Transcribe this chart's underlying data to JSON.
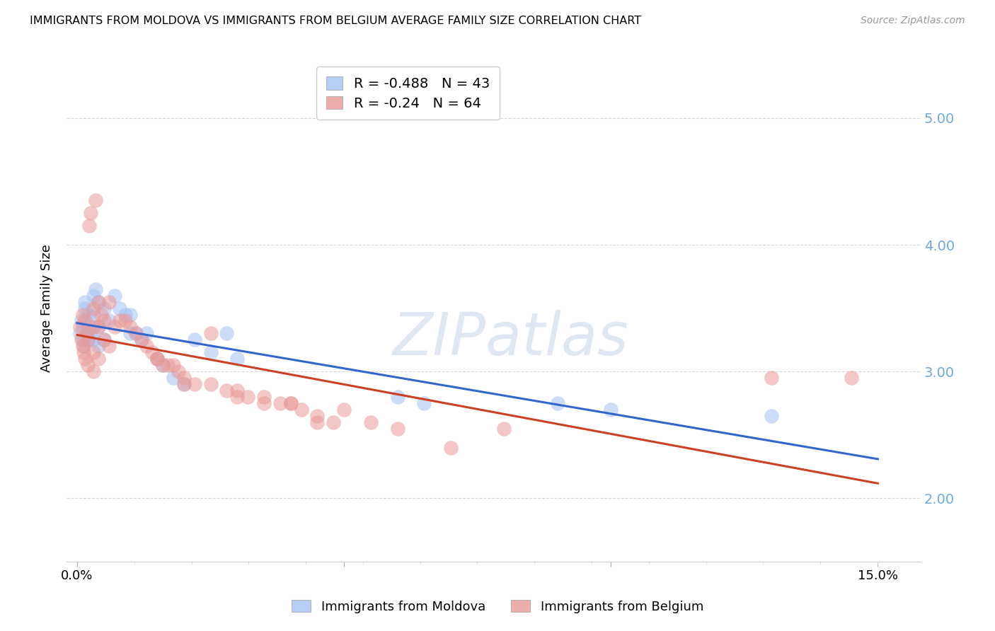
{
  "title": "IMMIGRANTS FROM MOLDOVA VS IMMIGRANTS FROM BELGIUM AVERAGE FAMILY SIZE CORRELATION CHART",
  "source": "Source: ZipAtlas.com",
  "ylabel": "Average Family Size",
  "xlabel_ticks": [
    "0.0%",
    "",
    "",
    "",
    "",
    "",
    "",
    "",
    "",
    "",
    "",
    "",
    "",
    "",
    "15.0%"
  ],
  "ylim": [
    1.5,
    5.5
  ],
  "xlim": [
    -0.002,
    0.158
  ],
  "yticks": [
    2.0,
    3.0,
    4.0,
    5.0
  ],
  "moldova_R": -0.488,
  "moldova_N": 43,
  "belgium_R": -0.24,
  "belgium_N": 64,
  "moldova_color": "#a4c2f4",
  "belgium_color": "#ea9999",
  "moldova_line_color": "#3366cc",
  "belgium_line_color": "#cc4125",
  "moldova_x": [
    0.0005,
    0.0008,
    0.001,
    0.001,
    0.0012,
    0.0015,
    0.0015,
    0.0018,
    0.002,
    0.002,
    0.0022,
    0.0025,
    0.003,
    0.003,
    0.003,
    0.0035,
    0.004,
    0.004,
    0.004,
    0.005,
    0.005,
    0.006,
    0.007,
    0.008,
    0.009,
    0.01,
    0.01,
    0.011,
    0.012,
    0.013,
    0.015,
    0.016,
    0.018,
    0.02,
    0.022,
    0.025,
    0.028,
    0.03,
    0.06,
    0.065,
    0.09,
    0.1,
    0.13
  ],
  "moldova_y": [
    3.3,
    3.4,
    3.25,
    3.35,
    3.2,
    3.5,
    3.55,
    3.3,
    3.45,
    3.25,
    3.35,
    3.3,
    3.6,
    3.45,
    3.25,
    3.65,
    3.55,
    3.35,
    3.2,
    3.5,
    3.25,
    3.4,
    3.6,
    3.5,
    3.45,
    3.45,
    3.3,
    3.3,
    3.25,
    3.3,
    3.1,
    3.05,
    2.95,
    2.9,
    3.25,
    3.15,
    3.3,
    3.1,
    2.8,
    2.75,
    2.75,
    2.7,
    2.65
  ],
  "belgium_x": [
    0.0005,
    0.0008,
    0.001,
    0.001,
    0.0012,
    0.0015,
    0.0015,
    0.0018,
    0.002,
    0.002,
    0.0022,
    0.0025,
    0.003,
    0.003,
    0.003,
    0.003,
    0.0035,
    0.004,
    0.004,
    0.004,
    0.0045,
    0.005,
    0.005,
    0.006,
    0.006,
    0.007,
    0.008,
    0.009,
    0.01,
    0.011,
    0.012,
    0.013,
    0.014,
    0.015,
    0.016,
    0.017,
    0.018,
    0.019,
    0.02,
    0.022,
    0.025,
    0.028,
    0.03,
    0.032,
    0.035,
    0.038,
    0.04,
    0.042,
    0.045,
    0.048,
    0.015,
    0.02,
    0.025,
    0.03,
    0.035,
    0.04,
    0.045,
    0.05,
    0.055,
    0.06,
    0.07,
    0.08,
    0.13,
    0.145
  ],
  "belgium_y": [
    3.35,
    3.25,
    3.45,
    3.2,
    3.15,
    3.4,
    3.1,
    3.3,
    3.25,
    3.05,
    4.15,
    4.25,
    3.5,
    3.35,
    3.15,
    3.0,
    4.35,
    3.55,
    3.35,
    3.1,
    3.45,
    3.4,
    3.25,
    3.55,
    3.2,
    3.35,
    3.4,
    3.4,
    3.35,
    3.3,
    3.25,
    3.2,
    3.15,
    3.1,
    3.05,
    3.05,
    3.05,
    3.0,
    2.95,
    2.9,
    3.3,
    2.85,
    2.85,
    2.8,
    2.8,
    2.75,
    2.75,
    2.7,
    2.65,
    2.6,
    3.1,
    2.9,
    2.9,
    2.8,
    2.75,
    2.75,
    2.6,
    2.7,
    2.6,
    2.55,
    2.4,
    2.55,
    2.95,
    2.95
  ]
}
